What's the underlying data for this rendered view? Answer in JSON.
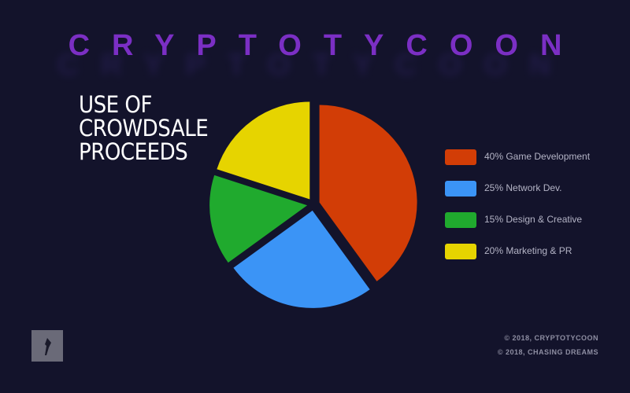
{
  "header": {
    "logo": "CRYPTOTYCOON"
  },
  "chart_data": {
    "type": "pie",
    "title": "USE OF CROWDSALE PROCEEDS",
    "categories": [
      "40% Game Development",
      "25% Network Dev.",
      "15% Design & Creative",
      "20% Marketing & PR"
    ],
    "values": [
      40,
      25,
      15,
      20
    ],
    "colors": [
      "#d23d06",
      "#3b94f6",
      "#20aa2e",
      "#e6d400"
    ],
    "legend": "right"
  },
  "footer": [
    "© 2018, CRYPTOTYCOON",
    "© 2018, CHASING DREAMS"
  ]
}
